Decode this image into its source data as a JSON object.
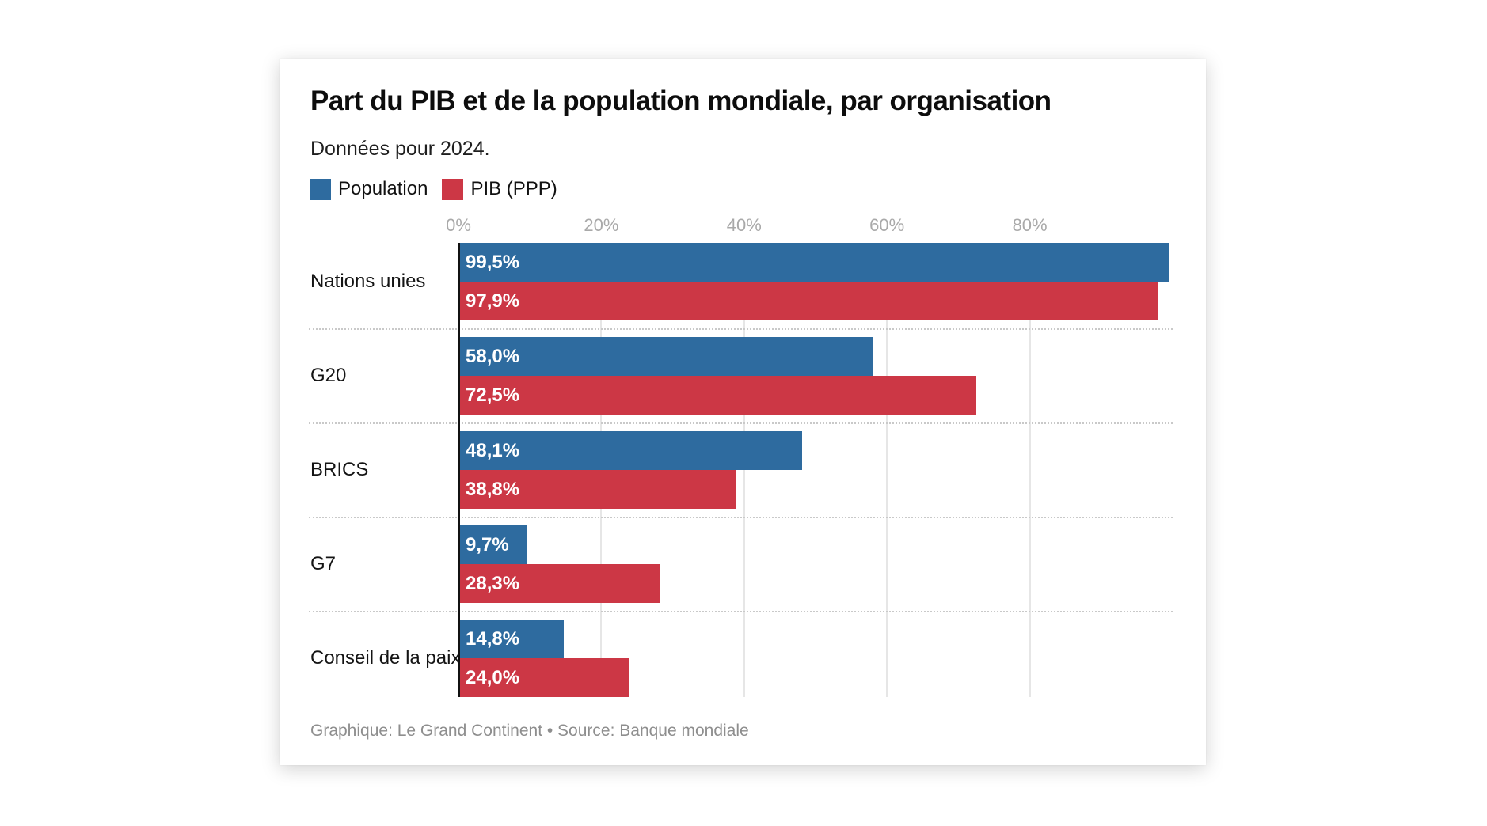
{
  "card": {
    "title": "Part du PIB et de la population mondiale, par organisation",
    "subtitle": "Données pour 2024.",
    "footer": "Graphique: Le Grand Continent • Source: Banque mondiale"
  },
  "colors": {
    "population_blue": "#2e6b9f",
    "pib_red": "#cc3745",
    "axis_black": "#111111",
    "tick_gray": "#a9a9a9",
    "footer_gray": "#8e8e8e"
  },
  "legend": [
    {
      "label": "Population",
      "color": "#2e6b9f"
    },
    {
      "label": "PIB (PPP)",
      "color": "#cc3745"
    }
  ],
  "chart_data": {
    "type": "bar",
    "orientation": "horizontal",
    "title": "Part du PIB et de la population mondiale, par organisation",
    "subtitle": "Données pour 2024.",
    "categories": [
      "Nations unies",
      "G20",
      "BRICS",
      "G7",
      "Conseil de la paix"
    ],
    "series": [
      {
        "name": "Population",
        "color": "#2e6b9f",
        "values": [
          99.5,
          58.0,
          48.1,
          9.7,
          14.8
        ],
        "labels": [
          "99,5%",
          "58,0%",
          "48,1%",
          "9,7%",
          "14,8%"
        ]
      },
      {
        "name": "PIB (PPP)",
        "color": "#cc3745",
        "values": [
          97.9,
          72.5,
          38.8,
          28.3,
          24.0
        ],
        "labels": [
          "97,9%",
          "72,5%",
          "38,8%",
          "28,3%",
          "24,0%"
        ]
      }
    ],
    "x_ticks": [
      0,
      20,
      40,
      60,
      80
    ],
    "x_tick_labels": [
      "0%",
      "20%",
      "40%",
      "60%",
      "80%"
    ],
    "xlim": [
      0,
      100
    ],
    "grid": "vertical",
    "legend_position": "top-left",
    "value_labels": "inside-start"
  }
}
